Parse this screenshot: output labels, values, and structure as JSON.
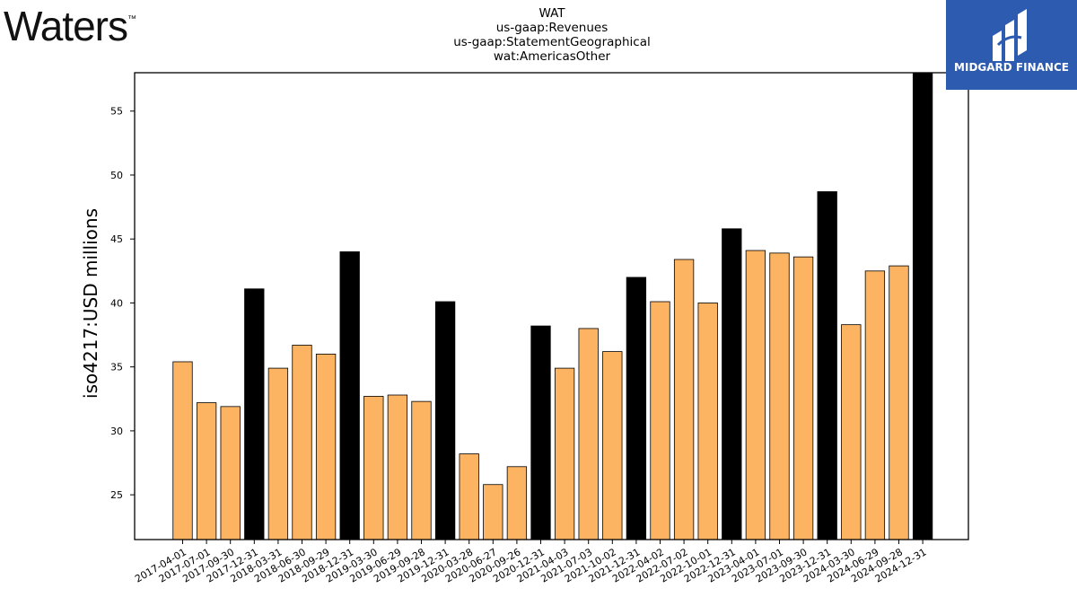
{
  "header": {
    "logo_text": "Waters",
    "logo_tm": "™",
    "title_lines": [
      "WAT",
      "us-gaap:Revenues",
      "us-gaap:StatementGeographical",
      "wat:AmericasOther"
    ],
    "brand_name": "MIDGARD FINANCE"
  },
  "colors": {
    "quarter_bar": "#fdb462",
    "year_end_bar": "#000000",
    "brand_blue": "#2d5bb0"
  },
  "chart_data": {
    "type": "bar",
    "title": "WAT\nus-gaap:Revenues\nus-gaap:StatementGeographical\nwat:AmericasOther",
    "ylabel": "iso4217:USD  millions",
    "xlabel": "",
    "ylim": [
      21.5,
      58
    ],
    "yticks": [
      25,
      30,
      35,
      40,
      45,
      50,
      55
    ],
    "grid": false,
    "categories": [
      "2017-04-01",
      "2017-07-01",
      "2017-09-30",
      "2017-12-31",
      "2018-03-31",
      "2018-06-30",
      "2018-09-29",
      "2018-12-31",
      "2019-03-30",
      "2019-06-29",
      "2019-09-28",
      "2019-12-31",
      "2020-03-28",
      "2020-06-27",
      "2020-09-26",
      "2020-12-31",
      "2021-04-03",
      "2021-07-03",
      "2021-10-02",
      "2021-12-31",
      "2022-04-02",
      "2022-07-02",
      "2022-10-01",
      "2022-12-31",
      "2023-04-01",
      "2023-07-01",
      "2023-09-30",
      "2023-12-31",
      "2024-03-30",
      "2024-06-29",
      "2024-09-28",
      "2024-12-31"
    ],
    "values": [
      35.4,
      32.2,
      31.9,
      41.1,
      34.9,
      36.7,
      36.0,
      44.0,
      32.7,
      32.8,
      32.3,
      40.1,
      28.2,
      25.8,
      27.2,
      38.2,
      34.9,
      38.0,
      36.2,
      42.0,
      40.1,
      43.4,
      40.0,
      45.8,
      44.1,
      43.9,
      43.6,
      48.7,
      38.3,
      42.5,
      42.9,
      58.0
    ],
    "year_end": [
      false,
      false,
      false,
      true,
      false,
      false,
      false,
      true,
      false,
      false,
      false,
      true,
      false,
      false,
      false,
      true,
      false,
      false,
      false,
      true,
      false,
      false,
      false,
      true,
      false,
      false,
      false,
      true,
      false,
      false,
      false,
      true
    ]
  }
}
